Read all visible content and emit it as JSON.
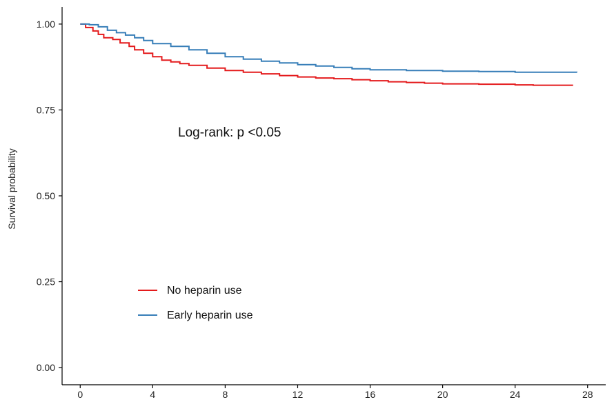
{
  "chart_data": {
    "type": "line",
    "step": true,
    "title": "",
    "xlabel": "",
    "ylabel": "Survival probability",
    "xlim": [
      -1,
      29
    ],
    "ylim": [
      -0.05,
      1.05
    ],
    "x_ticks": [
      0,
      4,
      8,
      12,
      16,
      20,
      24,
      28
    ],
    "y_ticks": [
      0.0,
      0.25,
      0.5,
      0.75,
      1.0
    ],
    "y_tick_labels": [
      "0.00",
      "0.25",
      "0.50",
      "0.75",
      "1.00"
    ],
    "grid": false,
    "legend_position": "bottom-left",
    "annotation": "Log-rank: p <0.05",
    "series": [
      {
        "name": "No heparin use",
        "color": "#e41a1c",
        "points": [
          [
            0,
            1.0
          ],
          [
            0.3,
            0.99
          ],
          [
            0.7,
            0.98
          ],
          [
            1.0,
            0.97
          ],
          [
            1.3,
            0.96
          ],
          [
            1.8,
            0.955
          ],
          [
            2.2,
            0.945
          ],
          [
            2.7,
            0.935
          ],
          [
            3.0,
            0.925
          ],
          [
            3.5,
            0.915
          ],
          [
            4.0,
            0.905
          ],
          [
            4.5,
            0.895
          ],
          [
            5.0,
            0.89
          ],
          [
            5.5,
            0.885
          ],
          [
            6.0,
            0.88
          ],
          [
            7.0,
            0.872
          ],
          [
            8.0,
            0.865
          ],
          [
            9.0,
            0.86
          ],
          [
            10.0,
            0.855
          ],
          [
            11.0,
            0.85
          ],
          [
            12.0,
            0.846
          ],
          [
            13.0,
            0.843
          ],
          [
            14.0,
            0.841
          ],
          [
            15.0,
            0.838
          ],
          [
            16.0,
            0.835
          ],
          [
            17.0,
            0.832
          ],
          [
            18.0,
            0.83
          ],
          [
            19.0,
            0.828
          ],
          [
            20.0,
            0.826
          ],
          [
            22.0,
            0.825
          ],
          [
            24.0,
            0.823
          ],
          [
            25.0,
            0.822
          ],
          [
            27.2,
            0.822
          ]
        ]
      },
      {
        "name": "Early heparin use",
        "color": "#377eb8",
        "points": [
          [
            0,
            1.0
          ],
          [
            0.5,
            0.998
          ],
          [
            1.0,
            0.992
          ],
          [
            1.5,
            0.982
          ],
          [
            2.0,
            0.975
          ],
          [
            2.5,
            0.968
          ],
          [
            3.0,
            0.96
          ],
          [
            3.5,
            0.952
          ],
          [
            4.0,
            0.943
          ],
          [
            5.0,
            0.935
          ],
          [
            6.0,
            0.925
          ],
          [
            7.0,
            0.915
          ],
          [
            8.0,
            0.905
          ],
          [
            9.0,
            0.898
          ],
          [
            10.0,
            0.892
          ],
          [
            11.0,
            0.887
          ],
          [
            12.0,
            0.882
          ],
          [
            13.0,
            0.878
          ],
          [
            14.0,
            0.874
          ],
          [
            15.0,
            0.87
          ],
          [
            16.0,
            0.867
          ],
          [
            18.0,
            0.865
          ],
          [
            20.0,
            0.863
          ],
          [
            22.0,
            0.862
          ],
          [
            24.0,
            0.86
          ],
          [
            26.0,
            0.86
          ],
          [
            27.4,
            0.859
          ]
        ]
      }
    ]
  }
}
